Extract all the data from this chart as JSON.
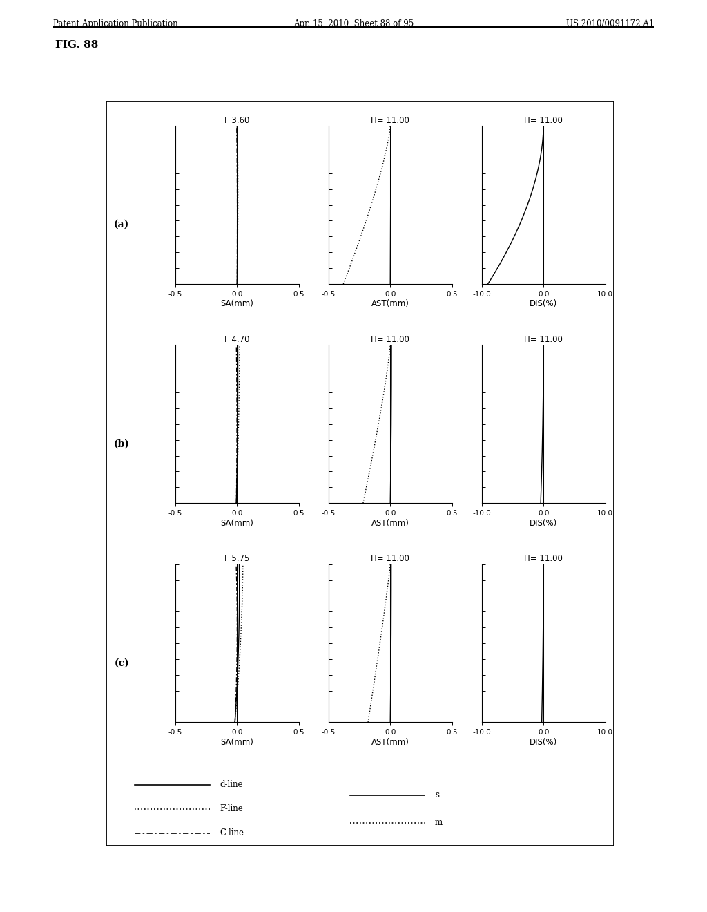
{
  "header_left": "Patent Application Publication",
  "header_center": "Apr. 15, 2010  Sheet 88 of 95",
  "header_right": "US 2010/0091172 A1",
  "fig_label": "FIG. 88",
  "rows": [
    {
      "label": "(a)",
      "sa_title": "F 3.60",
      "ast_title": "H= 11.00",
      "dis_title": "H= 11.00"
    },
    {
      "label": "(b)",
      "sa_title": "F 4.70",
      "ast_title": "H= 11.00",
      "dis_title": "H= 11.00"
    },
    {
      "label": "(c)",
      "sa_title": "F 5.75",
      "ast_title": "H= 11.00",
      "dis_title": "H= 11.00"
    }
  ],
  "sa_xlim": [
    -0.5,
    0.5
  ],
  "sa_xticks": [
    -0.5,
    0.0,
    0.5
  ],
  "sa_xticklabels": [
    "-0.5",
    "0.0",
    "0.5"
  ],
  "sa_xlabel": "SA(mm)",
  "ast_xlim": [
    -0.5,
    0.5
  ],
  "ast_xticks": [
    -0.5,
    0.0,
    0.5
  ],
  "ast_xticklabels": [
    "-0.5",
    "0.0",
    "0.5"
  ],
  "ast_xlabel": "AST(mm)",
  "dis_xlim": [
    -10.0,
    10.0
  ],
  "dis_xticks": [
    -10.0,
    0.0,
    10.0
  ],
  "dis_xticklabels": [
    "-10.0",
    "0.0",
    "10.0"
  ],
  "dis_xlabel": "DIS(%)",
  "legend_items_left": [
    {
      "style": "solid",
      "label": "d-line"
    },
    {
      "style": "dotted",
      "label": "F-line"
    },
    {
      "style": "dashdot",
      "label": "C-line"
    }
  ],
  "legend_items_right": [
    {
      "style": "solid",
      "label": "s"
    },
    {
      "style": "dotted",
      "label": "m"
    }
  ]
}
